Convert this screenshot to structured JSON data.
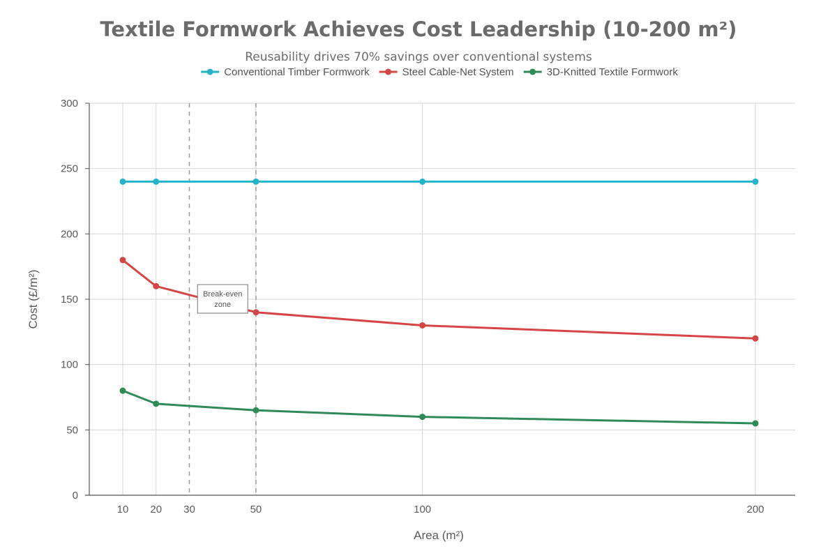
{
  "chart_data": {
    "type": "line",
    "title": "Textile Formwork Achieves Cost Leadership (10-200 m²)",
    "subtitle": "Reusability drives 70% savings over conventional systems",
    "xlabel": "Area (m²)",
    "ylabel": "Cost (£/m²)",
    "x": [
      10,
      20,
      50,
      100,
      200
    ],
    "x_ticks": [
      10,
      20,
      30,
      50,
      100,
      200
    ],
    "y_ticks": [
      0,
      50,
      100,
      150,
      200,
      250,
      300
    ],
    "ylim": [
      0,
      300
    ],
    "grid": true,
    "legend_position": "top",
    "series": [
      {
        "name": "Conventional Timber Formwork",
        "color": "#22b5c9",
        "values": [
          240,
          240,
          240,
          240,
          240
        ]
      },
      {
        "name": "Steel Cable-Net System",
        "color": "#d64545",
        "values": [
          180,
          160,
          140,
          130,
          120
        ]
      },
      {
        "name": "3D-Knitted Textile Formwork",
        "color": "#2e8b57",
        "values": [
          80,
          70,
          65,
          60,
          55
        ]
      }
    ],
    "reference_lines_x": [
      30,
      50
    ],
    "annotation": {
      "text_line1": "Break-even",
      "text_line2": "zone",
      "x": 40,
      "y": 150
    }
  }
}
